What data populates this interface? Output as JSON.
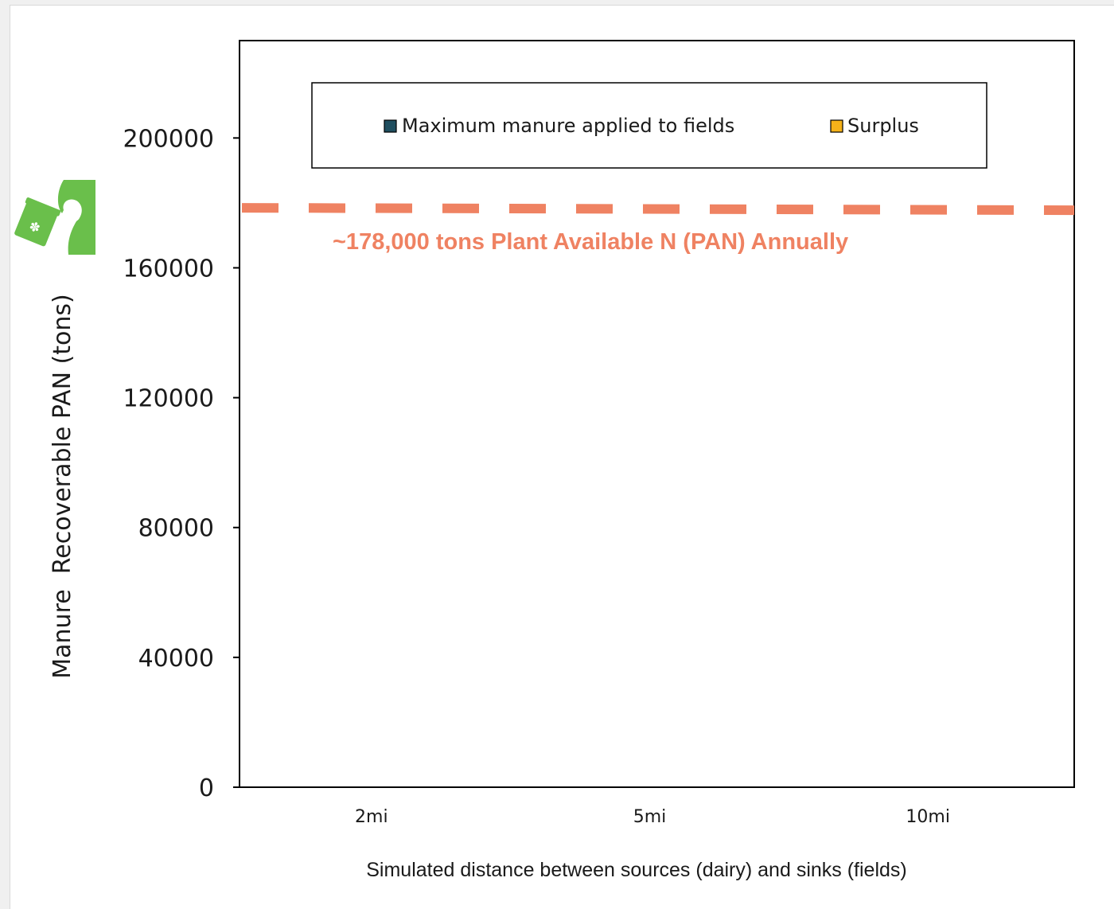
{
  "chart_data": {
    "type": "bar",
    "categories": [
      "2mi",
      "5mi",
      "10mi"
    ],
    "series": [
      {
        "name": "Maximum manure applied to fields",
        "color": "#1f4e5f",
        "values": [
          null,
          null,
          null
        ]
      },
      {
        "name": "Surplus",
        "color": "#f5b21a",
        "values": [
          null,
          null,
          null
        ]
      }
    ],
    "stacked": true,
    "title": "",
    "xlabel": "Simulated distance between sources (dairy) and sinks (fields)",
    "ylabel": "Manure  Recoverable PAN (tons)",
    "ylim": [
      0,
      230000
    ],
    "yticks": [
      0,
      40000,
      80000,
      120000,
      160000,
      200000
    ],
    "ytick_labels": [
      "0",
      "40000",
      "80000",
      "120000",
      "160000",
      "200000"
    ],
    "grid": false,
    "legend_position": "top",
    "reference_line": {
      "value": 178000,
      "label": "~178,000 tons Plant Available N (PAN) Annually",
      "color": "#ef8262",
      "style": "dashed"
    }
  },
  "icon": {
    "name": "manure-spreader-icon",
    "color": "#6abf4b"
  }
}
